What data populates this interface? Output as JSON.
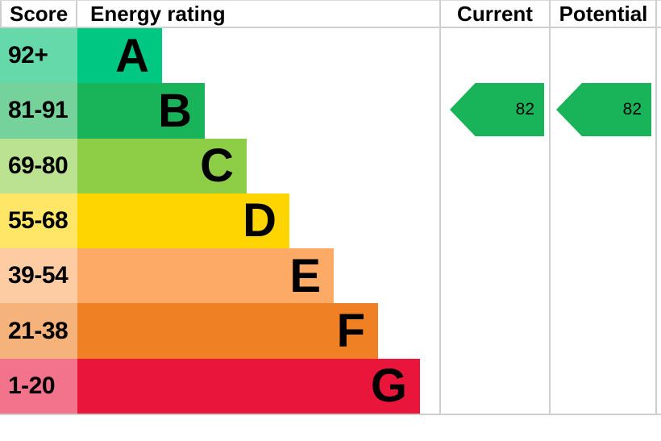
{
  "header": {
    "score": "Score",
    "energy_rating": "Energy rating",
    "current": "Current",
    "potential": "Potential"
  },
  "chart_data": {
    "type": "bar",
    "title": "Energy rating",
    "columns": [
      "Score",
      "Energy rating",
      "Current",
      "Potential"
    ],
    "categories": [
      "A",
      "B",
      "C",
      "D",
      "E",
      "F",
      "G"
    ],
    "rows": [
      {
        "letter": "A",
        "score": "92+",
        "color": "#00c781",
        "tint_color": "#66d9ab"
      },
      {
        "letter": "B",
        "score": "81-91",
        "color": "#19b459",
        "tint_color": "#75d29b"
      },
      {
        "letter": "C",
        "score": "69-80",
        "color": "#8dce46",
        "tint_color": "#bbe290"
      },
      {
        "letter": "D",
        "score": "55-68",
        "color": "#ffd500",
        "tint_color": "#ffe666"
      },
      {
        "letter": "E",
        "score": "39-54",
        "color": "#fcaa65",
        "tint_color": "#fdcca3"
      },
      {
        "letter": "F",
        "score": "21-38",
        "color": "#ef8023",
        "tint_color": "#f5b37b"
      },
      {
        "letter": "G",
        "score": "1-20",
        "color": "#e9153b",
        "tint_color": "#f2738b"
      }
    ],
    "current": {
      "value": 82,
      "band": "B",
      "color": "#19b459"
    },
    "potential": {
      "value": 82,
      "band": "B",
      "color": "#19b459"
    }
  }
}
